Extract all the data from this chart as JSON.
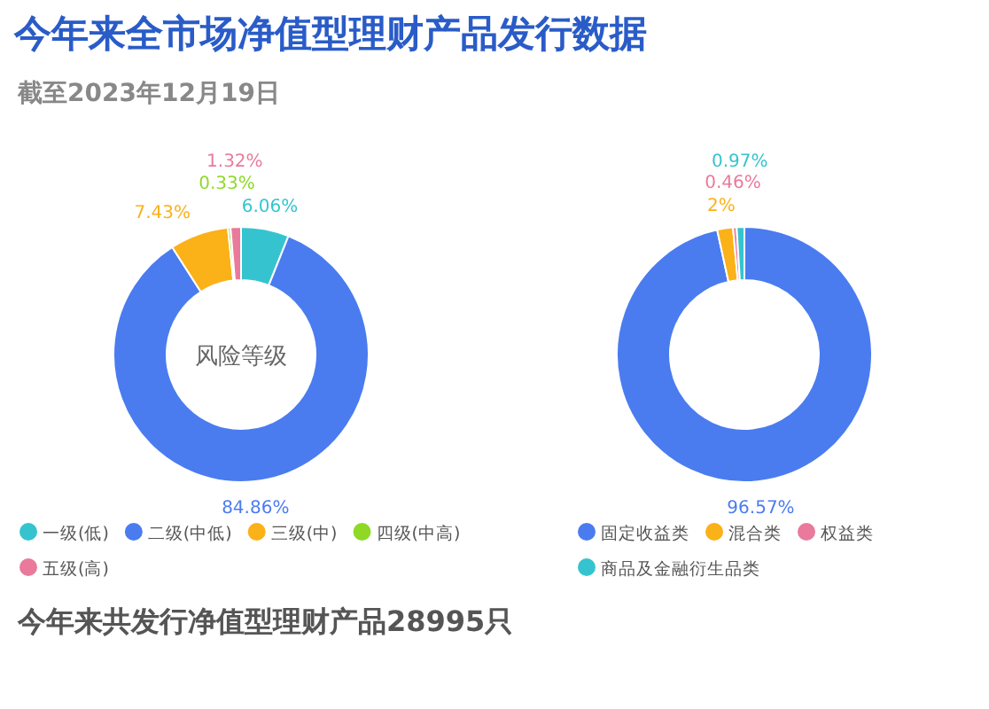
{
  "chart_data": [
    {
      "type": "donut",
      "title": "今年来全市场净值型理财产品发行数据",
      "subtitle": "截至2023年12月19日",
      "categories": [
        "一级(低)",
        "二级(中低)",
        "三级(中)",
        "四级(中高)",
        "五级(高)"
      ],
      "values": [
        6.06,
        84.86,
        7.43,
        0.33,
        1.32
      ],
      "colors": [
        "#35c4cf",
        "#4a7cf0",
        "#fbb118",
        "#8fd926",
        "#e97a9b"
      ],
      "value_labels": [
        "6.06%",
        "84.86%",
        "7.43%",
        "0.33%",
        "1.32%"
      ],
      "legend": "bottom",
      "annotations": [
        "风险等级",
        "今年来共发行净值型理财产品28995只"
      ]
    },
    {
      "type": "donut",
      "categories": [
        "固定收益类",
        "混合类",
        "权益类",
        "商品及金融衍生品类"
      ],
      "values": [
        96.57,
        2,
        0.46,
        0.97
      ],
      "colors": [
        "#4a7cf0",
        "#fbb118",
        "#e97a9b",
        "#35c4cf"
      ],
      "value_labels": [
        "96.57%",
        "2%",
        "0.46%",
        "0.97%"
      ],
      "legend": "bottom"
    }
  ]
}
